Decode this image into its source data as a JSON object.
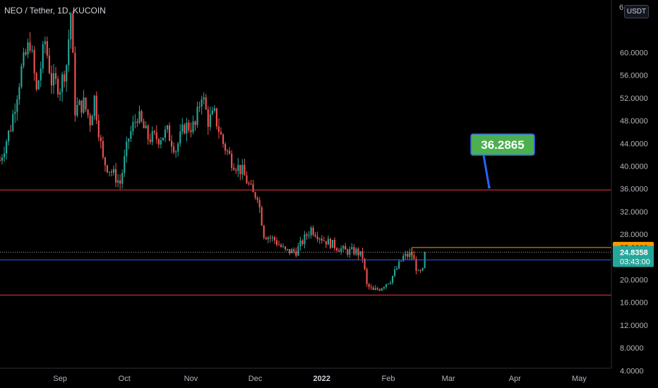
{
  "header": {
    "symbol_title": "NEO / Tether, 1D, KUCOIN",
    "currency_button": "USDT",
    "clipped_top_label": "6"
  },
  "colors": {
    "background": "#000000",
    "up_candle": "#26a69a",
    "down_candle": "#ef5350",
    "hline_red": "#f23645",
    "hline_blue": "#2962ff",
    "orange_box": "#ff9800",
    "label_green": "#4caf50",
    "last_price_bg": "#26a69a"
  },
  "chart_data": {
    "type": "candlestick",
    "title": "NEO / Tether, 1D, KUCOIN",
    "y_axis": {
      "ticks": [
        "60.0000",
        "56.0000",
        "52.0000",
        "48.0000",
        "44.0000",
        "40.0000",
        "36.0000",
        "32.0000",
        "28.0000",
        "24.0000",
        "20.0000",
        "16.0000",
        "12.0000",
        "8.0000",
        "4.0000"
      ],
      "tick_values": [
        60,
        56,
        52,
        48,
        44,
        40,
        36,
        32,
        28,
        24,
        20,
        16,
        12,
        8,
        4
      ],
      "range": [
        2,
        68
      ]
    },
    "x_axis": {
      "labels": [
        {
          "text": "Sep",
          "bold": false
        },
        {
          "text": "Oct",
          "bold": false
        },
        {
          "text": "Nov",
          "bold": false
        },
        {
          "text": "Dec",
          "bold": false
        },
        {
          "text": "2022",
          "bold": true
        },
        {
          "text": "Feb",
          "bold": false
        },
        {
          "text": "Mar",
          "bold": false
        },
        {
          "text": "Apr",
          "bold": false
        },
        {
          "text": "May",
          "bold": false
        }
      ],
      "label_dates": [
        "2021-09-01",
        "2021-10-01",
        "2021-11-01",
        "2021-12-01",
        "2022-01-01",
        "2022-02-01",
        "2022-03-01",
        "2022-04-01",
        "2022-05-01"
      ],
      "range": [
        "2021-08-04",
        "2022-05-16"
      ]
    },
    "price_path": [
      [
        "2021-08-04",
        41
      ],
      [
        "2021-08-09",
        47
      ],
      [
        "2021-08-14",
        57
      ],
      [
        "2021-08-18",
        62
      ],
      [
        "2021-08-21",
        53
      ],
      [
        "2021-08-25",
        62
      ],
      [
        "2021-08-28",
        55
      ],
      [
        "2021-09-01",
        54
      ],
      [
        "2021-09-04",
        58
      ],
      [
        "2021-09-06",
        67
      ],
      [
        "2021-09-08",
        50
      ],
      [
        "2021-09-12",
        51
      ],
      [
        "2021-09-15",
        48
      ],
      [
        "2021-09-17",
        52
      ],
      [
        "2021-09-21",
        41
      ],
      [
        "2021-09-25",
        39
      ],
      [
        "2021-09-29",
        37
      ],
      [
        "2021-10-03",
        45
      ],
      [
        "2021-10-07",
        49
      ],
      [
        "2021-10-12",
        45
      ],
      [
        "2021-10-17",
        45
      ],
      [
        "2021-10-21",
        46
      ],
      [
        "2021-10-25",
        43
      ],
      [
        "2021-10-29",
        47
      ],
      [
        "2021-11-03",
        47
      ],
      [
        "2021-11-06",
        53
      ],
      [
        "2021-11-09",
        48
      ],
      [
        "2021-11-12",
        49
      ],
      [
        "2021-11-16",
        44
      ],
      [
        "2021-11-20",
        41
      ],
      [
        "2021-11-25",
        39
      ],
      [
        "2021-11-30",
        35
      ],
      [
        "2021-12-02",
        35
      ],
      [
        "2021-12-05",
        28
      ],
      [
        "2021-12-10",
        27
      ],
      [
        "2021-12-15",
        25
      ],
      [
        "2021-12-20",
        25
      ],
      [
        "2021-12-27",
        29
      ],
      [
        "2022-01-02",
        27
      ],
      [
        "2022-01-07",
        26
      ],
      [
        "2022-01-12",
        25
      ],
      [
        "2022-01-17",
        25
      ],
      [
        "2022-01-20",
        24
      ],
      [
        "2022-01-22",
        19
      ],
      [
        "2022-01-25",
        18
      ],
      [
        "2022-01-28",
        18.5
      ],
      [
        "2022-02-02",
        20
      ],
      [
        "2022-02-05",
        22
      ],
      [
        "2022-02-08",
        24
      ],
      [
        "2022-02-12",
        24.5
      ],
      [
        "2022-02-15",
        21
      ],
      [
        "2022-02-17",
        21.5
      ],
      [
        "2022-02-18",
        24.84
      ]
    ],
    "horizontal_lines": [
      {
        "price": 35.8,
        "color": "#f23645"
      },
      {
        "price": 23.5,
        "color": "#2962ff"
      },
      {
        "price": 17.3,
        "color": "#f23645"
      }
    ],
    "dotted_line": {
      "price": 24.84
    },
    "orange_range": {
      "start": "2022-02-12",
      "top": 25.66,
      "bottom": 23.5
    },
    "callout": {
      "text": "36.2865",
      "price": 36.2865,
      "anchor_date": "2022-03-20"
    },
    "price_tags": [
      {
        "id": "orange-level",
        "text": "25.6600",
        "price": 25.66,
        "bg": "#ff9800",
        "fg": "#000000"
      },
      {
        "id": "last-price",
        "text": "24.8358",
        "sub_text": "03:43:00",
        "price": 24.84,
        "bg": "#26a69a",
        "fg": "#ffffff"
      }
    ]
  }
}
